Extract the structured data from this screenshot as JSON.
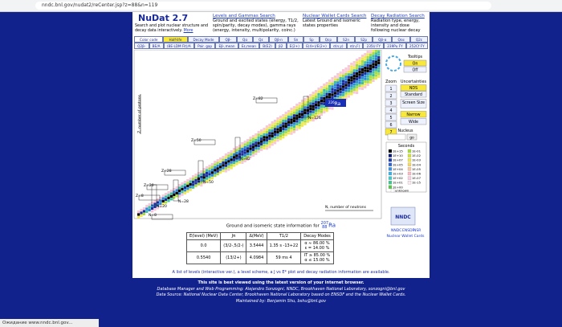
{
  "browser": {
    "url": "nndc.bnl.gov/nudat2/reCenter.jsp?z=88&n=119",
    "status": "Ожидание www.nndc.bnl.gov..."
  },
  "header": {
    "title": "NuDat 2.7",
    "tagline": "Search and plot nuclear structure and decay data interactively.",
    "more": "More",
    "links": [
      {
        "title": "Levels and Gammas Search",
        "desc": "Ground and excited states (energy, T1/2, spin/parity, decay modes), gamma rays (energy, intensity, multipolarity, coinc.)"
      },
      {
        "title": "Nuclear Wallet Cards Search",
        "desc": "Latest Ground and isomeric states properties"
      },
      {
        "title": "Decay Radiation Search",
        "desc": "Radiation type, energy, intensity and dose following nuclear decay"
      }
    ]
  },
  "color_code": {
    "row1": [
      "Color code",
      "Half-life",
      "Decay Mode",
      "Qβ-",
      "Qα",
      "Qε",
      "Qβ-n",
      "Sn",
      "Sp",
      "Qεp",
      "S2n",
      "S2p",
      "Qβ-α",
      "Qεα",
      "Q2ε"
    ],
    "row2": [
      "Q2β-",
      "BE/A",
      "(BE-LDM Fit)/A",
      "Pair. gap",
      "Eβ-,mean",
      "Eε,mean",
      "B(E2)",
      "β2",
      "E(2+)",
      "E(4+)/E(2+)",
      "σ(n,γ)",
      "σ(n,F)",
      "235U FY",
      "239Pu FY",
      "252Cf FY"
    ]
  },
  "chart": {
    "y_axis": "Z, number of protons",
    "x_axis": "N, number of neutrons",
    "magic": [
      "Z=82",
      "N=126",
      "Z=50",
      "N=82",
      "Z=28",
      "N=50",
      "Z=20",
      "N=28",
      "Z=8",
      "N=20",
      "N=8"
    ],
    "selected": {
      "mass": "226",
      "symbol": "Ra"
    }
  },
  "sidebar": {
    "tooltips": "Tooltips",
    "on": "On",
    "off": "Off",
    "zoom": "Zoom",
    "zoom_levels": [
      "1",
      "2",
      "3",
      "4",
      "5",
      "6",
      "7"
    ],
    "uncertainties": "Uncertainties",
    "nds": "NDS",
    "standard": "Standard",
    "screen_size": "Screen Size",
    "narrow": "Narrow",
    "wide": "Wide",
    "nucleus": "Nucleus",
    "go": "go"
  },
  "legend": {
    "title": "Seconds",
    "unknown": "unknown",
    "items": [
      {
        "label": "1E+15",
        "color": "#000000"
      },
      {
        "label": "1E-01",
        "color": "#a8dc40"
      },
      {
        "label": "1E+10",
        "color": "#0c1c70"
      },
      {
        "label": "1E-02",
        "color": "#d4e43c"
      },
      {
        "label": "1E+07",
        "color": "#1d3cb0"
      },
      {
        "label": "1E-03",
        "color": "#f0ec48"
      },
      {
        "label": "1E+05",
        "color": "#2e64d0"
      },
      {
        "label": "1E-04",
        "color": "#f8d860"
      },
      {
        "label": "1E+04",
        "color": "#3c8ee0"
      },
      {
        "label": "1E-05",
        "color": "#f8c8a0"
      },
      {
        "label": "1E+03",
        "color": "#40b0e0"
      },
      {
        "label": "1E-06",
        "color": "#f8bcc8"
      },
      {
        "label": "1E+02",
        "color": "#40c8c8"
      },
      {
        "label": "1E-07",
        "color": "#f8d0e0"
      },
      {
        "label": "1E+01",
        "color": "#3cc890"
      },
      {
        "label": "1E-15",
        "color": "#fce8f0"
      },
      {
        "label": "1E+00",
        "color": "#58c84a"
      }
    ]
  },
  "nndc": {
    "logo": "NNDC",
    "links": [
      "NNDC",
      "ENSDF",
      "NSR"
    ],
    "wallet": "Nuclear Wallet Cards"
  },
  "info": {
    "heading": "Ground and isomeric state information for",
    "mass": "207",
    "z": "88",
    "symbol": "Ra",
    "columns": [
      "E(level) (MeV)",
      "Jπ",
      "Δ(MeV)",
      "T1/2",
      "Decay Modes"
    ],
    "rows": [
      [
        "0.0",
        "(3/2-,5/2-)",
        "3.5444",
        "1.35 s -13+22",
        [
          "α ≈ 86.00 %",
          "ε = 14.00 %"
        ]
      ],
      [
        "0.5540",
        "(13/2+)",
        "4.0984",
        "59 ms 4",
        [
          "IT ≥ 85.00 %",
          "α ≤ 15.00 %"
        ]
      ]
    ]
  },
  "available": "A list of levels (interactive ver.), a level scheme, a J vs E* plot and decay radiation information are available.",
  "footer": [
    "This site is best viewed using the latest version of your internet browser.",
    "Database Manager and Web Programming: Alejandro Sonzogni, NNDC, Brookhaven National Laboratory, sonzogni@bnl.gov",
    "Data Source: National Nuclear Data Center, Brookhaven National Laboratory based on ENSDF and the Nuclear Wallet Cards.",
    "Maintained by: Benjamin Shu, bshu@bnl.gov"
  ]
}
